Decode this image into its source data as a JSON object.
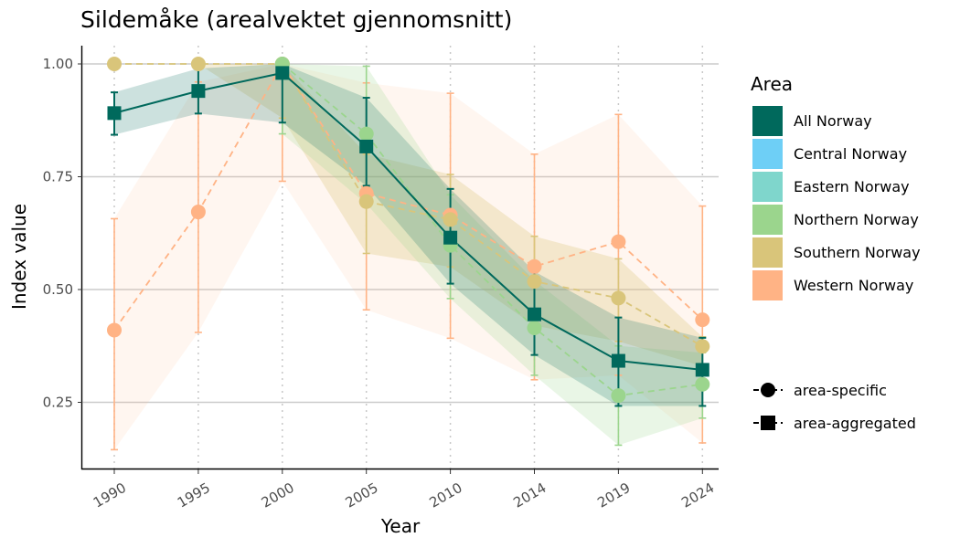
{
  "chart_data": {
    "type": "line",
    "title": "Sildemåke (arealvektet gjennomsnitt)",
    "xlabel": "Year",
    "ylabel": "Index value",
    "categories": [
      "1990",
      "1995",
      "2000",
      "2005",
      "2010",
      "2014",
      "2019",
      "2024"
    ],
    "y_ticks": [
      0.25,
      0.5,
      0.75,
      1.0
    ],
    "y_tick_labels": [
      "0.25",
      "0.50",
      "0.75",
      "1.00"
    ],
    "ylim": [
      0.12,
      1.04
    ],
    "grid": "horizontal major lines; dotted vertical lines at years",
    "legend": {
      "placement": "right",
      "title": "Area",
      "entries": [
        {
          "name": "All Norway",
          "color": "#00695c"
        },
        {
          "name": "Central Norway",
          "color": "#6ecff6"
        },
        {
          "name": "Eastern Norway",
          "color": "#7fd6cc"
        },
        {
          "name": "Northern Norway",
          "color": "#9bd58d"
        },
        {
          "name": "Southern Norway",
          "color": "#d9c57a"
        },
        {
          "name": "Western Norway",
          "color": "#ffb385"
        }
      ],
      "shape_entries": [
        {
          "label": "area-specific",
          "shape": "circle"
        },
        {
          "label": "area-aggregated",
          "shape": "square"
        }
      ]
    },
    "series": [
      {
        "name": "Western Norway",
        "color": "#ffb385",
        "shape": "circle",
        "line": "dashed",
        "values": [
          0.41,
          0.672,
          1.0,
          0.713,
          0.665,
          0.551,
          0.606,
          0.433
        ],
        "lower": [
          0.145,
          0.405,
          0.74,
          0.455,
          0.392,
          0.3,
          0.31,
          0.16
        ],
        "upper": [
          0.657,
          0.96,
          1.0,
          0.958,
          0.935,
          0.8,
          0.888,
          0.685
        ],
        "ribbon_opacity": 0.12
      },
      {
        "name": "Southern Norway",
        "color": "#d9c57a",
        "shape": "circle",
        "line": "dashed",
        "values": [
          1.0,
          1.0,
          1.0,
          0.695,
          0.655,
          0.518,
          0.481,
          0.374
        ],
        "lower": [
          1.0,
          1.0,
          0.88,
          0.58,
          0.55,
          0.42,
          0.385,
          0.33
        ],
        "upper": [
          1.0,
          1.0,
          1.0,
          0.8,
          0.755,
          0.618,
          0.568,
          0.395
        ],
        "ribbon_opacity": 0.3
      },
      {
        "name": "Northern Norway",
        "color": "#9bd58d",
        "shape": "circle",
        "line": "dashed",
        "values": [
          null,
          null,
          1.0,
          0.845,
          0.598,
          0.415,
          0.265,
          0.29
        ],
        "lower": [
          null,
          null,
          0.845,
          0.69,
          0.48,
          0.31,
          0.155,
          0.215
        ],
        "upper": [
          null,
          null,
          1.0,
          0.995,
          0.71,
          0.52,
          0.375,
          0.36
        ],
        "ribbon_opacity": 0.22
      },
      {
        "name": "All Norway",
        "color": "#00695c",
        "shape": "square",
        "line": "solid",
        "values": [
          0.891,
          0.94,
          0.98,
          0.817,
          0.615,
          0.445,
          0.342,
          0.322
        ],
        "lower": [
          0.843,
          0.89,
          0.87,
          0.73,
          0.513,
          0.355,
          0.242,
          0.242
        ],
        "upper": [
          0.937,
          0.99,
          1.0,
          0.925,
          0.723,
          0.54,
          0.438,
          0.393
        ],
        "ribbon_opacity": 0.2
      }
    ]
  }
}
